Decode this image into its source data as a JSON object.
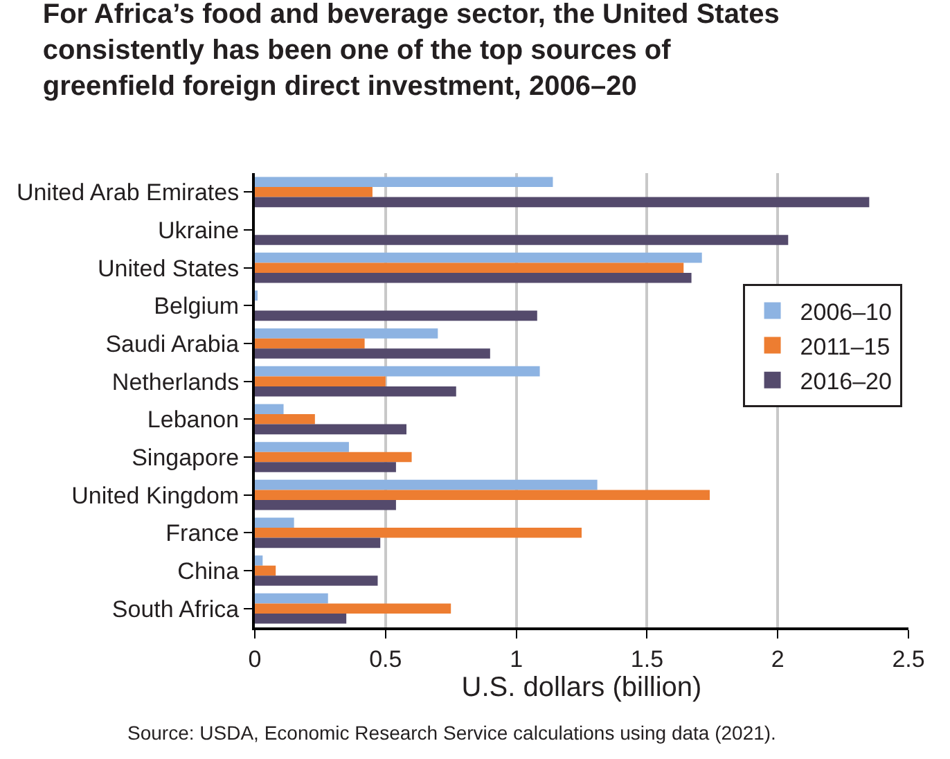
{
  "chart_data": {
    "type": "bar",
    "orientation": "horizontal",
    "title": "For Africa’s food and beverage sector, the United States\nconsistently has been one of the top sources of\ngreenfield foreign direct investment, 2006–20",
    "xlabel": "U.S. dollars (billion)",
    "categories": [
      "United Arab Emirates",
      "Ukraine",
      "United States",
      "Belgium",
      "Saudi Arabia",
      "Netherlands",
      "Lebanon",
      "Singapore",
      "United Kingdom",
      "France",
      "China",
      "South Africa"
    ],
    "series": [
      {
        "name": "2006–10",
        "color": "#8db3e2",
        "values": [
          1.14,
          null,
          1.71,
          0.01,
          0.7,
          1.09,
          0.11,
          0.36,
          1.31,
          0.15,
          0.03,
          0.28
        ]
      },
      {
        "name": "2011–15",
        "color": "#ed7d31",
        "values": [
          0.45,
          null,
          1.64,
          null,
          0.42,
          0.5,
          0.23,
          0.6,
          1.74,
          1.25,
          0.08,
          0.75
        ]
      },
      {
        "name": "2016–20",
        "color": "#544a6c",
        "values": [
          2.35,
          2.04,
          1.67,
          1.08,
          0.9,
          0.77,
          0.58,
          0.54,
          0.54,
          0.48,
          0.47,
          0.35
        ]
      }
    ],
    "xlim": [
      0,
      2.5
    ],
    "xticks": [
      0,
      0.5,
      1,
      1.5,
      2,
      2.5
    ],
    "grid": "x",
    "legend": "right",
    "annotations": [
      "Source: USDA, Economic Research Service calculations using data (2021)."
    ]
  }
}
